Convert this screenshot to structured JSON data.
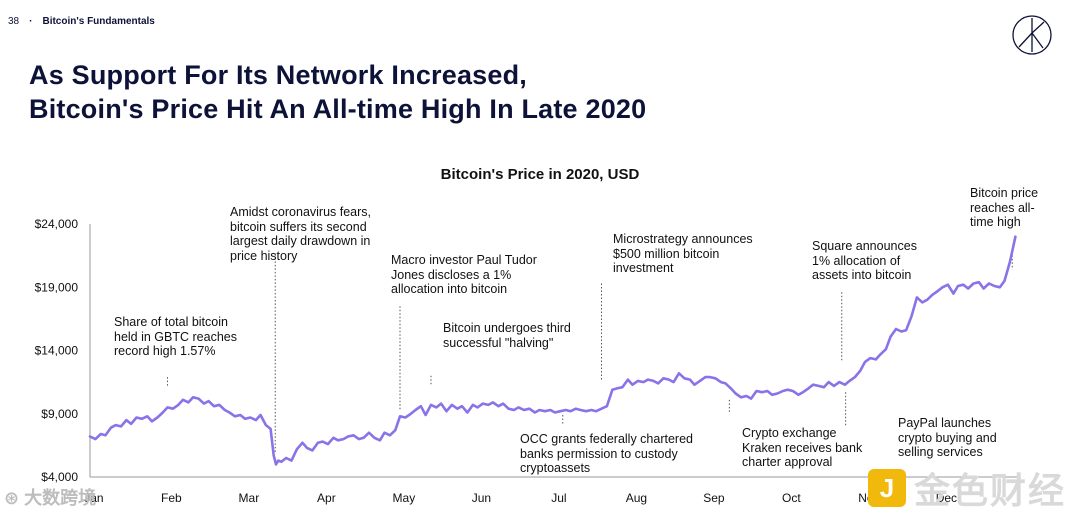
{
  "header": {
    "page_number": "38",
    "separator": "·",
    "section": "Bitcoin's Fundamentals"
  },
  "title": {
    "line1": "As Support For Its Network Increased,",
    "line2": "Bitcoin's Price Hit An All-time High In Late 2020"
  },
  "watermarks": {
    "left": "⊛ 大数跨境",
    "badge": "J",
    "right": "金色财经"
  },
  "colors": {
    "line": "#8a72e8",
    "text": "#111111",
    "title": "#0d1238",
    "axis": "#9a9a9a"
  },
  "chart_data": {
    "type": "line",
    "title": "Bitcoin's Price in 2020, USD",
    "xlabel": "",
    "ylabel": "",
    "ylim": [
      4000,
      24000
    ],
    "xlim": [
      0,
      12
    ],
    "ytick_values": [
      4000,
      9000,
      14000,
      19000,
      24000
    ],
    "ytick_labels": [
      "$4,000",
      "$9,000",
      "$14,000",
      "$19,000",
      "$24,000"
    ],
    "xtick_labels": [
      "Jan",
      "Feb",
      "Mar",
      "Apr",
      "May",
      "Jun",
      "Jul",
      "Aug",
      "Sep",
      "Oct",
      "Nov",
      "Dec"
    ],
    "series": [
      {
        "name": "Bitcoin price",
        "x": [
          0,
          0.07,
          0.14,
          0.2,
          0.27,
          0.33,
          0.4,
          0.47,
          0.53,
          0.6,
          0.67,
          0.74,
          0.8,
          0.87,
          0.94,
          1.0,
          1.07,
          1.14,
          1.2,
          1.27,
          1.33,
          1.4,
          1.47,
          1.53,
          1.6,
          1.67,
          1.74,
          1.8,
          1.87,
          1.94,
          2.0,
          2.07,
          2.14,
          2.2,
          2.27,
          2.33,
          2.37,
          2.4,
          2.43,
          2.47,
          2.53,
          2.6,
          2.67,
          2.74,
          2.8,
          2.87,
          2.94,
          3.0,
          3.07,
          3.14,
          3.2,
          3.27,
          3.33,
          3.4,
          3.47,
          3.53,
          3.6,
          3.67,
          3.74,
          3.8,
          3.87,
          3.94,
          4.0,
          4.07,
          4.14,
          4.2,
          4.27,
          4.33,
          4.4,
          4.47,
          4.53,
          4.6,
          4.67,
          4.74,
          4.8,
          4.87,
          4.94,
          5.0,
          5.07,
          5.14,
          5.2,
          5.27,
          5.33,
          5.4,
          5.47,
          5.53,
          5.6,
          5.67,
          5.74,
          5.8,
          5.87,
          5.94,
          6.0,
          6.07,
          6.14,
          6.2,
          6.27,
          6.33,
          6.4,
          6.47,
          6.53,
          6.6,
          6.67,
          6.74,
          6.8,
          6.87,
          6.94,
          7.0,
          7.07,
          7.14,
          7.2,
          7.27,
          7.33,
          7.4,
          7.47,
          7.53,
          7.6,
          7.67,
          7.74,
          7.8,
          7.87,
          7.94,
          8.0,
          8.07,
          8.14,
          8.2,
          8.27,
          8.33,
          8.4,
          8.47,
          8.53,
          8.6,
          8.67,
          8.74,
          8.8,
          8.87,
          8.94,
          9.0,
          9.07,
          9.14,
          9.2,
          9.27,
          9.33,
          9.4,
          9.47,
          9.53,
          9.6,
          9.67,
          9.74,
          9.8,
          9.87,
          9.94,
          10.0,
          10.07,
          10.14,
          10.2,
          10.27,
          10.33,
          10.4,
          10.47,
          10.53,
          10.6,
          10.67,
          10.74,
          10.8,
          10.87,
          10.94,
          11.0,
          11.07,
          11.14,
          11.2,
          11.27,
          11.33,
          11.4,
          11.47,
          11.53,
          11.6,
          11.67,
          11.74,
          11.8,
          11.87,
          11.94
        ],
        "values": [
          7200,
          7000,
          7400,
          7300,
          7900,
          8100,
          8000,
          8500,
          8200,
          8700,
          8600,
          8800,
          8400,
          8700,
          9100,
          9500,
          9400,
          9700,
          10100,
          9900,
          10300,
          10200,
          9800,
          10000,
          9600,
          9700,
          9300,
          9100,
          8800,
          8900,
          8600,
          8700,
          8500,
          8900,
          8100,
          7800,
          5700,
          5000,
          5300,
          5200,
          5500,
          5300,
          6200,
          6700,
          6300,
          6100,
          6700,
          6800,
          6600,
          7100,
          6900,
          7000,
          7200,
          7300,
          7000,
          7100,
          7500,
          7100,
          6900,
          7500,
          7300,
          7700,
          8800,
          8700,
          9000,
          9300,
          9600,
          8900,
          9700,
          9500,
          9800,
          9200,
          9700,
          9400,
          9600,
          9100,
          9700,
          9500,
          9800,
          9700,
          9900,
          9600,
          9800,
          9400,
          9300,
          9500,
          9300,
          9400,
          9100,
          9300,
          9200,
          9300,
          9100,
          9200,
          9300,
          9200,
          9400,
          9300,
          9200,
          9300,
          9200,
          9400,
          9600,
          10900,
          11000,
          11100,
          11700,
          11300,
          11600,
          11500,
          11700,
          11600,
          11400,
          11800,
          11700,
          11500,
          12200,
          11800,
          11700,
          11300,
          11600,
          11900,
          11900,
          11800,
          11500,
          11400,
          11000,
          10600,
          10300,
          10400,
          10200,
          10800,
          10700,
          10800,
          10500,
          10600,
          10800,
          10900,
          10800,
          10500,
          10700,
          11000,
          11300,
          11200,
          11100,
          11500,
          11200,
          11500,
          11300,
          11600,
          11900,
          12400,
          13100,
          13400,
          13300,
          13700,
          14100,
          15100,
          15700,
          15500,
          15600,
          16700,
          18200,
          17800,
          18000,
          18400,
          18700,
          19000,
          19200,
          18500,
          19100,
          19200,
          18900,
          19300,
          19400,
          18900,
          19300,
          19100,
          19000,
          19500,
          21000,
          23000
        ]
      }
    ],
    "annotations": [
      {
        "text": "Share of total bitcoin held in GBTC reaches record high 1.57%"
      },
      {
        "text": "Amidst coronavirus fears, bitcoin suffers its second largest daily drawdown in price history"
      },
      {
        "text": "Macro investor Paul Tudor Jones discloses a 1% allocation into bitcoin"
      },
      {
        "text": "Bitcoin undergoes third successful \"halving\""
      },
      {
        "text": "OCC grants federally chartered banks permission to custody cryptoassets"
      },
      {
        "text": "Microstrategy announces $500 million bitcoin investment"
      },
      {
        "text": "Crypto exchange Kraken receives bank charter approval"
      },
      {
        "text": "Square announces 1% allocation of assets into bitcoin"
      },
      {
        "text": "PayPal launches crypto buying and selling services"
      },
      {
        "text": "Bitcoin price reaches all-time high"
      }
    ]
  }
}
